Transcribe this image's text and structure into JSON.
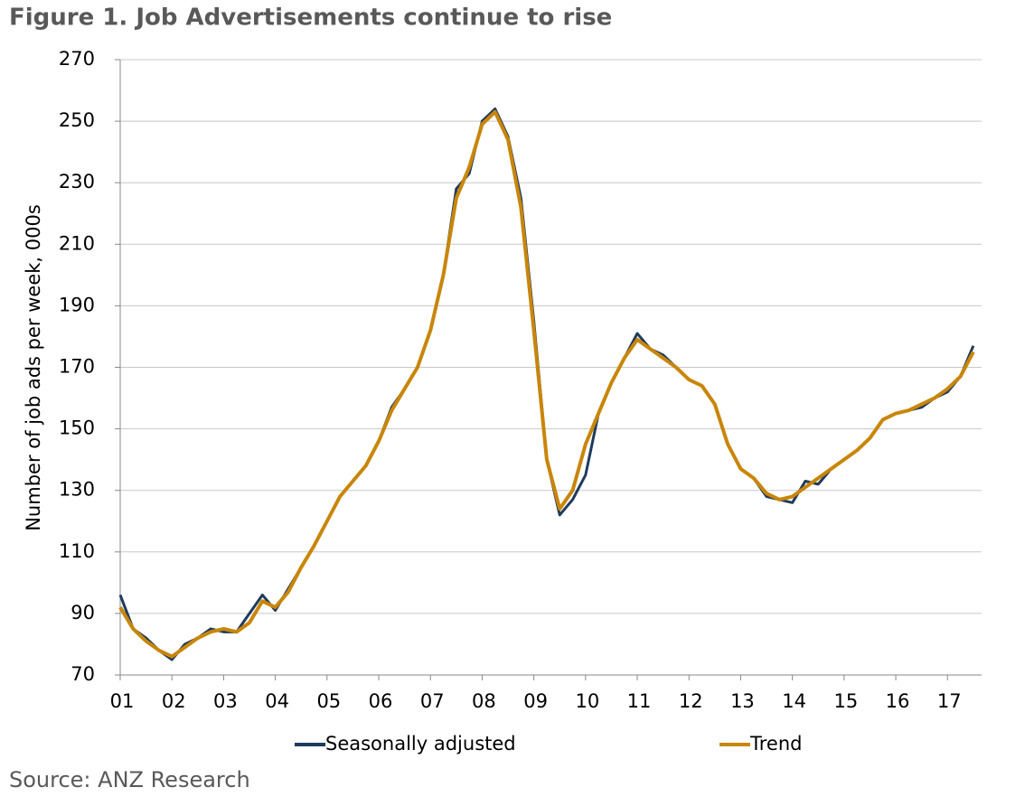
{
  "chart_data": {
    "type": "line",
    "title": "Figure 1. Job Advertisements continue to rise",
    "ylabel": "Number of job ads per week, 000s",
    "source": "Source: ANZ Research",
    "x": [
      1,
      1.25,
      1.5,
      1.75,
      2,
      2.25,
      2.5,
      2.75,
      3,
      3.25,
      3.5,
      3.75,
      4,
      4.25,
      4.5,
      4.75,
      5,
      5.25,
      5.5,
      5.75,
      6,
      6.25,
      6.5,
      6.75,
      7,
      7.25,
      7.5,
      7.75,
      8,
      8.25,
      8.5,
      8.75,
      9,
      9.25,
      9.5,
      9.75,
      10,
      10.25,
      10.5,
      10.75,
      11,
      11.25,
      11.5,
      11.75,
      12,
      12.25,
      12.5,
      12.75,
      13,
      13.25,
      13.5,
      13.75,
      14,
      14.25,
      14.5,
      14.75,
      15,
      15.25,
      15.5,
      15.75,
      16,
      16.25,
      16.5,
      16.75,
      17,
      17.25,
      17.5
    ],
    "series": [
      {
        "name": "Seasonally adjusted",
        "color": "#1f3b5c",
        "values": [
          96,
          85,
          82,
          78,
          75,
          80,
          82,
          85,
          84,
          84,
          90,
          96,
          91,
          98,
          105,
          112,
          120,
          128,
          133,
          138,
          146,
          157,
          163,
          170,
          182,
          200,
          228,
          233,
          250,
          254,
          245,
          225,
          185,
          140,
          122,
          127,
          135,
          155,
          165,
          173,
          181,
          176,
          174,
          170,
          166,
          164,
          158,
          145,
          137,
          134,
          128,
          127,
          126,
          133,
          132,
          137,
          140,
          143,
          147,
          153,
          155,
          156,
          157,
          160,
          162,
          167,
          177
        ]
      },
      {
        "name": "Trend",
        "color": "#c8860a",
        "values": [
          92,
          85,
          81,
          78,
          76,
          79,
          82,
          84,
          85,
          84,
          87,
          94,
          92,
          97,
          105,
          112,
          120,
          128,
          133,
          138,
          146,
          156,
          163,
          170,
          182,
          200,
          225,
          235,
          249,
          253,
          244,
          222,
          182,
          140,
          124,
          130,
          145,
          155,
          165,
          173,
          179,
          176,
          173,
          170,
          166,
          164,
          158,
          145,
          137,
          134,
          129,
          127,
          128,
          131,
          134,
          137,
          140,
          143,
          147,
          153,
          155,
          156,
          158,
          160,
          163,
          167,
          175
        ]
      }
    ],
    "xlim": [
      1,
      17.66
    ],
    "xticks": [
      {
        "value": 1,
        "label": "01"
      },
      {
        "value": 2,
        "label": "02"
      },
      {
        "value": 3,
        "label": "03"
      },
      {
        "value": 4,
        "label": "04"
      },
      {
        "value": 5,
        "label": "05"
      },
      {
        "value": 6,
        "label": "06"
      },
      {
        "value": 7,
        "label": "07"
      },
      {
        "value": 8,
        "label": "08"
      },
      {
        "value": 9,
        "label": "09"
      },
      {
        "value": 10,
        "label": "10"
      },
      {
        "value": 11,
        "label": "11"
      },
      {
        "value": 12,
        "label": "12"
      },
      {
        "value": 13,
        "label": "13"
      },
      {
        "value": 14,
        "label": "14"
      },
      {
        "value": 15,
        "label": "15"
      },
      {
        "value": 16,
        "label": "16"
      },
      {
        "value": 17,
        "label": "17"
      }
    ],
    "ylim": [
      70,
      270
    ],
    "yticks": [
      70,
      90,
      110,
      130,
      150,
      170,
      190,
      210,
      230,
      250,
      270
    ],
    "grid": true
  }
}
